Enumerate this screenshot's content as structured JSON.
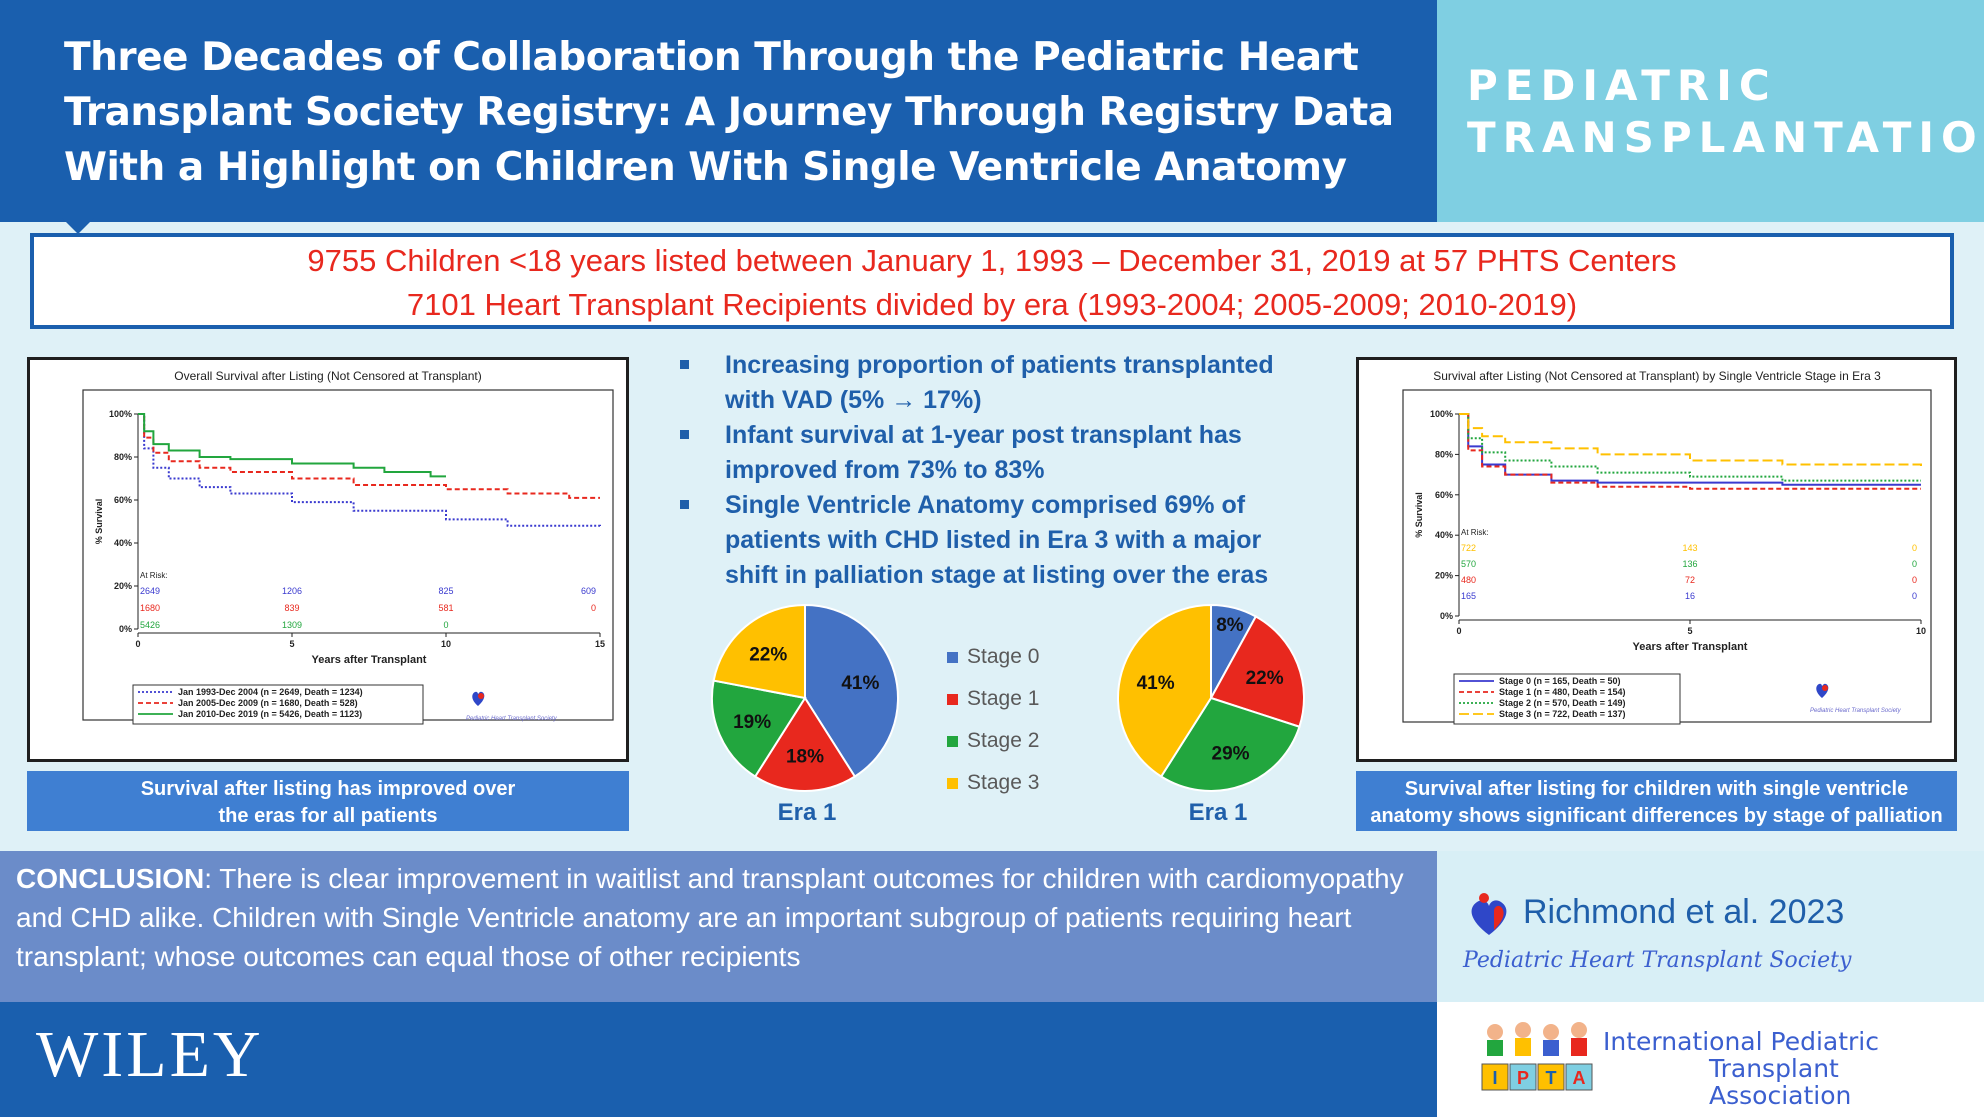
{
  "header": {
    "title_lines": [
      "Three Decades of Collaboration Through the Pediatric Heart",
      "Transplant Society Registry:  A Journey Through Registry Data",
      "With a Highlight on Children With Single Ventricle Anatomy"
    ],
    "journal_lines": [
      "PEDIATRIC",
      "TRANSPLANTATION"
    ]
  },
  "summary": {
    "line1": "9755 Children <18 years listed between January 1, 1993 – December 31, 2019 at 57 PHTS Centers",
    "line2": "7101 Heart Transplant Recipients divided by era (1993-2004;  2005-2009;  2010-2019)"
  },
  "bullets": [
    "Increasing proportion of patients transplanted with VAD (5% → 17%)",
    "Infant survival at 1-year post transplant has improved from 73% to 83%",
    "Single Ventricle Anatomy comprised 69% of patients with CHD listed in Era 3 with a major shift in palliation stage at listing over the eras"
  ],
  "colors": {
    "header_blue": "#1a5fae",
    "journal_cyan": "#7fcfe2",
    "stage0": "#4472c4",
    "stage1": "#e8281e",
    "stage2": "#22a63e",
    "stage3": "#ffc000"
  },
  "chart_data": [
    {
      "type": "line",
      "title": "Overall Survival after Listing (Not Censored at Transplant)",
      "xlabel": "Years after Transplant",
      "ylabel": "% Survival",
      "xlim": [
        0,
        15
      ],
      "ylim": [
        0,
        100
      ],
      "xticks": [
        "0",
        "5",
        "10",
        "15"
      ],
      "yticks": [
        "0%",
        "20%",
        "40%",
        "60%",
        "80%",
        "100%"
      ],
      "series": [
        {
          "name": "Jan 1993-Dec 2004 (n = 2649, Death = 1234)",
          "color": "#3a3acf",
          "style": "dotted",
          "x": [
            0,
            0.2,
            0.5,
            1,
            2,
            3,
            5,
            7,
            10,
            12,
            15
          ],
          "y": [
            100,
            84,
            75,
            70,
            66,
            63,
            59,
            55,
            51,
            48,
            47
          ]
        },
        {
          "name": "Jan 2005-Dec 2009 (n = 1680, Death = 528)",
          "color": "#e8281e",
          "style": "dashed",
          "x": [
            0,
            0.2,
            0.5,
            1,
            2,
            3,
            5,
            7,
            10,
            12,
            14,
            15
          ],
          "y": [
            100,
            89,
            82,
            78,
            75,
            73,
            70,
            67,
            65,
            63,
            61,
            61
          ]
        },
        {
          "name": "Jan 2010-Dec 2019 (n = 5426, Death = 1123)",
          "color": "#22a63e",
          "style": "solid",
          "x": [
            0,
            0.2,
            0.5,
            1,
            2,
            3,
            5,
            7,
            8,
            9.5,
            10
          ],
          "y": [
            100,
            92,
            86,
            83,
            80,
            79,
            77,
            75,
            73,
            71,
            71
          ]
        }
      ],
      "at_risk": {
        "label": "At Risk:",
        "x": [
          0,
          5,
          10,
          15
        ],
        "rows": [
          {
            "color": "#3a3acf",
            "values": [
              "2649",
              "1206",
              "825",
              "609"
            ]
          },
          {
            "color": "#e8281e",
            "values": [
              "1680",
              "839",
              "581",
              "0"
            ]
          },
          {
            "color": "#22a63e",
            "values": [
              "5426",
              "1309",
              "0",
              ""
            ]
          }
        ]
      },
      "caption": "Survival after listing has improved over the eras for all patients"
    },
    {
      "type": "pie",
      "title": "Era 1",
      "categories": [
        "Stage 0",
        "Stage 1",
        "Stage 2",
        "Stage 3"
      ],
      "values": [
        41,
        18,
        19,
        22
      ],
      "labels": [
        "41%",
        "18%",
        "19%",
        "22%"
      ]
    },
    {
      "type": "pie",
      "title": "Era 1",
      "categories": [
        "Stage 0",
        "Stage 1",
        "Stage 2",
        "Stage 3"
      ],
      "values": [
        8,
        22,
        29,
        41
      ],
      "labels": [
        "8%",
        "22%",
        "29%",
        "41%"
      ]
    },
    {
      "type": "line",
      "title": "Survival after Listing (Not Censored at Transplant) by Single Ventricle Stage in Era 3",
      "xlabel": "Years after Transplant",
      "ylabel": "% Survival",
      "xlim": [
        0,
        10
      ],
      "ylim": [
        0,
        100
      ],
      "xticks": [
        "0",
        "5",
        "10"
      ],
      "yticks": [
        "0%",
        "20%",
        "40%",
        "60%",
        "80%",
        "100%"
      ],
      "series": [
        {
          "name": "Stage 0 (n = 165, Death = 50)",
          "color": "#3a3acf",
          "style": "solid",
          "x": [
            0,
            0.2,
            0.5,
            1,
            2,
            3,
            5,
            7,
            10
          ],
          "y": [
            100,
            84,
            75,
            70,
            67,
            66,
            66,
            65,
            65
          ]
        },
        {
          "name": "Stage 1 (n = 480, Death = 154)",
          "color": "#e8281e",
          "style": "dashed",
          "x": [
            0,
            0.2,
            0.5,
            1,
            2,
            3,
            5,
            7,
            10
          ],
          "y": [
            100,
            82,
            74,
            70,
            66,
            64,
            63,
            63,
            63
          ]
        },
        {
          "name": "Stage 2 (n = 570, Death = 149)",
          "color": "#22a63e",
          "style": "dotted",
          "x": [
            0,
            0.2,
            0.5,
            1,
            2,
            3,
            5,
            7,
            10
          ],
          "y": [
            100,
            88,
            81,
            77,
            74,
            71,
            69,
            67,
            67
          ]
        },
        {
          "name": "Stage 3 (n = 722, Death = 137)",
          "color": "#ffc000",
          "style": "longdash",
          "x": [
            0,
            0.2,
            0.5,
            1,
            2,
            3,
            5,
            7,
            10
          ],
          "y": [
            100,
            93,
            89,
            86,
            83,
            80,
            77,
            75,
            73
          ]
        }
      ],
      "at_risk": {
        "label": "At Risk:",
        "x": [
          0,
          5,
          10
        ],
        "rows": [
          {
            "color": "#ffc000",
            "values": [
              "722",
              "143",
              "0"
            ]
          },
          {
            "color": "#22a63e",
            "values": [
              "570",
              "136",
              "0"
            ]
          },
          {
            "color": "#e8281e",
            "values": [
              "480",
              "72",
              "0"
            ]
          },
          {
            "color": "#3a3acf",
            "values": [
              "165",
              "16",
              "0"
            ]
          }
        ]
      },
      "caption": "Survival after listing for children with single ventricle anatomy shows significant differences by stage of palliation"
    }
  ],
  "captions": {
    "left": [
      "Survival after listing has improved over",
      "the eras for all patients"
    ],
    "right": [
      "Survival after listing for children with single ventricle",
      "anatomy shows significant differences by stage of palliation"
    ]
  },
  "conclusion": {
    "lead": "CONCLUSION",
    "text": ": There is clear improvement in waitlist and transplant outcomes for children with cardiomyopathy and CHD alike.  Children with Single Ventricle anatomy are an important subgroup of patients requiring heart transplant; whose outcomes can equal those of other recipients"
  },
  "citation": "Richmond et al. 2023",
  "phts_logo_text": "Pediatric Heart Transplant Society",
  "publisher": "WILEY",
  "ipta": {
    "line1": "International Pediatric",
    "line2": "Transplant Association",
    "blocks": [
      "I",
      "P",
      "T",
      "A"
    ]
  }
}
